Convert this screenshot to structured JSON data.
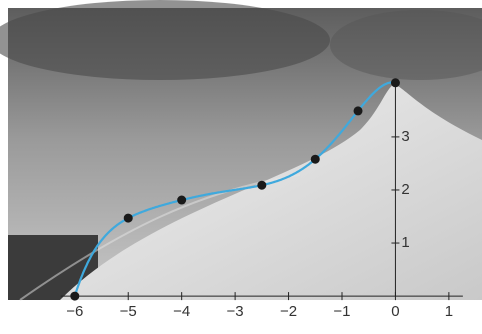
{
  "chart_data": {
    "type": "scatter",
    "x": [
      -6,
      -5,
      -4,
      -2.5,
      -1.5,
      -0.7,
      0
    ],
    "series": [
      {
        "color": "#1a1a1a",
        "values": [
          0,
          1.47,
          1.81,
          2.09,
          2.58,
          3.49,
          4.02
        ]
      }
    ],
    "curve": {
      "color": "#3fa9dd"
    },
    "xlim": [
      -7.25,
      1.62
    ],
    "ylim": [
      -0.62,
      5.58
    ],
    "xticks": [
      {
        "value": -6,
        "label": "−6"
      },
      {
        "value": -5,
        "label": "−5"
      },
      {
        "value": -4,
        "label": "−4"
      },
      {
        "value": -3,
        "label": "−3"
      },
      {
        "value": -2,
        "label": "−2"
      },
      {
        "value": -1,
        "label": "−1"
      },
      {
        "value": 0,
        "label": "0"
      },
      1
    ],
    "yticks": [
      1,
      2,
      3
    ]
  }
}
